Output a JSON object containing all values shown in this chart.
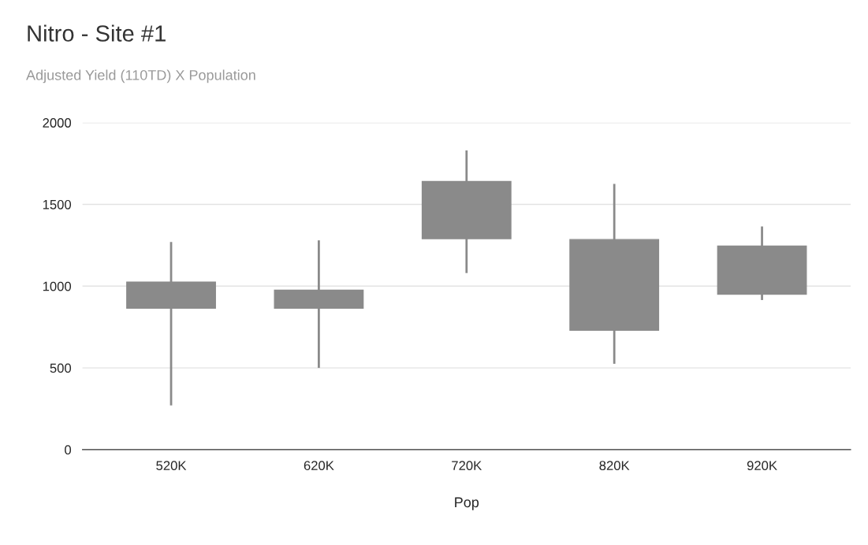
{
  "chart_data": {
    "type": "candlestick",
    "title": "Nitro - Site #1",
    "subtitle": "Adjusted Yield (110TD) X Population",
    "xlabel": "Pop",
    "categories": [
      "520K",
      "620K",
      "720K",
      "820K",
      "920K"
    ],
    "ohlc": [
      [
        1025,
        1270,
        270,
        865
      ],
      [
        975,
        1280,
        500,
        865
      ],
      [
        1640,
        1830,
        1080,
        1290
      ],
      [
        1285,
        1625,
        525,
        730
      ],
      [
        1245,
        1365,
        915,
        950
      ]
    ],
    "color": "#8a8a8a",
    "ylim": [
      0,
      2000
    ],
    "yticks": [
      0,
      500,
      1000,
      1500,
      2000
    ],
    "grid": "y"
  }
}
